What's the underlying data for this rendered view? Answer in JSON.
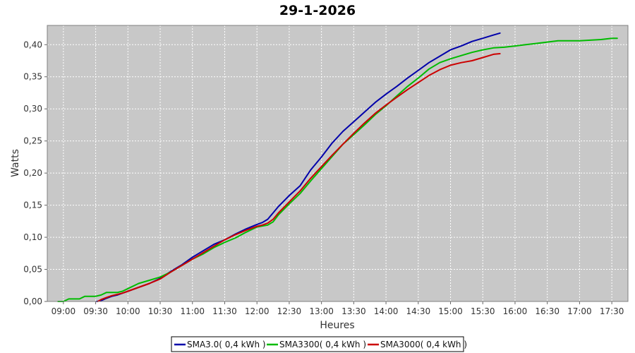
{
  "chart_data": {
    "type": "line",
    "title": "29-1-2026",
    "xlabel": "Heures",
    "ylabel": "Watts",
    "x_unit": "time-of-day",
    "xlim": [
      "08:45",
      "17:45"
    ],
    "ylim": [
      0,
      0.43
    ],
    "grid": true,
    "legend_position": "bottom",
    "x_ticks": [
      "09:00",
      "09:30",
      "10:00",
      "10:30",
      "11:00",
      "11:30",
      "12:00",
      "12:30",
      "13:00",
      "13:30",
      "14:00",
      "14:30",
      "15:00",
      "15:30",
      "16:00",
      "16:30",
      "17:00",
      "17:30"
    ],
    "y_ticks": [
      "0,00",
      "0,05",
      "0,10",
      "0,15",
      "0,20",
      "0,25",
      "0,30",
      "0,35",
      "0,40"
    ],
    "series": [
      {
        "name": "SMA3.0( 0,4 kWh )",
        "color": "#0000aa",
        "x": [
          "09:31",
          "09:36",
          "09:40",
          "09:45",
          "09:50",
          "09:55",
          "10:00",
          "10:10",
          "10:20",
          "10:30",
          "10:40",
          "10:50",
          "11:00",
          "11:10",
          "11:20",
          "11:30",
          "11:40",
          "11:50",
          "12:00",
          "12:05",
          "12:10",
          "12:15",
          "12:20",
          "12:30",
          "12:40",
          "12:50",
          "13:00",
          "13:10",
          "13:20",
          "13:30",
          "13:40",
          "13:50",
          "14:00",
          "14:10",
          "14:20",
          "14:30",
          "14:40",
          "14:50",
          "15:00",
          "15:10",
          "15:20",
          "15:30",
          "15:40",
          "15:46"
        ],
        "values": [
          0.0,
          0.002,
          0.005,
          0.008,
          0.01,
          0.013,
          0.016,
          0.022,
          0.028,
          0.036,
          0.047,
          0.057,
          0.069,
          0.079,
          0.089,
          0.096,
          0.105,
          0.113,
          0.12,
          0.123,
          0.128,
          0.138,
          0.148,
          0.165,
          0.18,
          0.205,
          0.225,
          0.247,
          0.265,
          0.28,
          0.295,
          0.31,
          0.323,
          0.335,
          0.348,
          0.36,
          0.372,
          0.382,
          0.392,
          0.398,
          0.405,
          0.41,
          0.415,
          0.418
        ]
      },
      {
        "name": "SMA3300( 0,4 kWh )",
        "color": "#00bb00",
        "x": [
          "08:55",
          "09:00",
          "09:05",
          "09:10",
          "09:15",
          "09:20",
          "09:25",
          "09:30",
          "09:35",
          "09:40",
          "09:45",
          "09:50",
          "09:55",
          "10:00",
          "10:10",
          "10:20",
          "10:30",
          "10:40",
          "10:50",
          "11:00",
          "11:10",
          "11:20",
          "11:30",
          "11:40",
          "11:50",
          "12:00",
          "12:10",
          "12:15",
          "12:20",
          "12:30",
          "12:40",
          "12:50",
          "13:00",
          "13:10",
          "13:20",
          "13:30",
          "13:40",
          "13:50",
          "14:00",
          "14:10",
          "14:20",
          "14:30",
          "14:40",
          "14:50",
          "15:00",
          "15:10",
          "15:20",
          "15:30",
          "15:40",
          "15:50",
          "16:00",
          "16:10",
          "16:20",
          "16:30",
          "16:40",
          "16:50",
          "17:00",
          "17:10",
          "17:20",
          "17:30",
          "17:35"
        ],
        "values": [
          0.0,
          0.0,
          0.004,
          0.004,
          0.004,
          0.008,
          0.008,
          0.008,
          0.01,
          0.014,
          0.014,
          0.014,
          0.016,
          0.02,
          0.028,
          0.033,
          0.038,
          0.046,
          0.056,
          0.066,
          0.074,
          0.084,
          0.092,
          0.099,
          0.108,
          0.116,
          0.119,
          0.124,
          0.135,
          0.152,
          0.168,
          0.188,
          0.207,
          0.226,
          0.245,
          0.26,
          0.275,
          0.291,
          0.305,
          0.32,
          0.335,
          0.348,
          0.362,
          0.372,
          0.378,
          0.383,
          0.388,
          0.392,
          0.395,
          0.396,
          0.398,
          0.4,
          0.402,
          0.404,
          0.406,
          0.406,
          0.406,
          0.407,
          0.408,
          0.41,
          0.41
        ]
      },
      {
        "name": "SMA3000( 0,4 kWh )",
        "color": "#cc0000",
        "x": [
          "09:32",
          "09:35",
          "09:40",
          "09:45",
          "09:50",
          "09:55",
          "10:00",
          "10:10",
          "10:20",
          "10:30",
          "10:40",
          "10:50",
          "11:00",
          "11:10",
          "11:20",
          "11:30",
          "11:40",
          "11:50",
          "12:00",
          "12:05",
          "12:10",
          "12:15",
          "12:20",
          "12:30",
          "12:40",
          "12:50",
          "13:00",
          "13:10",
          "13:20",
          "13:30",
          "13:40",
          "13:50",
          "14:00",
          "14:10",
          "14:20",
          "14:30",
          "14:40",
          "14:50",
          "15:00",
          "15:10",
          "15:20",
          "15:30",
          "15:40",
          "15:46"
        ],
        "values": [
          0.0,
          0.003,
          0.006,
          0.009,
          0.011,
          0.013,
          0.016,
          0.022,
          0.028,
          0.035,
          0.046,
          0.056,
          0.066,
          0.076,
          0.086,
          0.096,
          0.104,
          0.111,
          0.117,
          0.119,
          0.122,
          0.128,
          0.138,
          0.155,
          0.172,
          0.192,
          0.21,
          0.228,
          0.245,
          0.262,
          0.278,
          0.293,
          0.306,
          0.318,
          0.33,
          0.341,
          0.352,
          0.361,
          0.368,
          0.372,
          0.375,
          0.38,
          0.385,
          0.386
        ]
      }
    ]
  }
}
